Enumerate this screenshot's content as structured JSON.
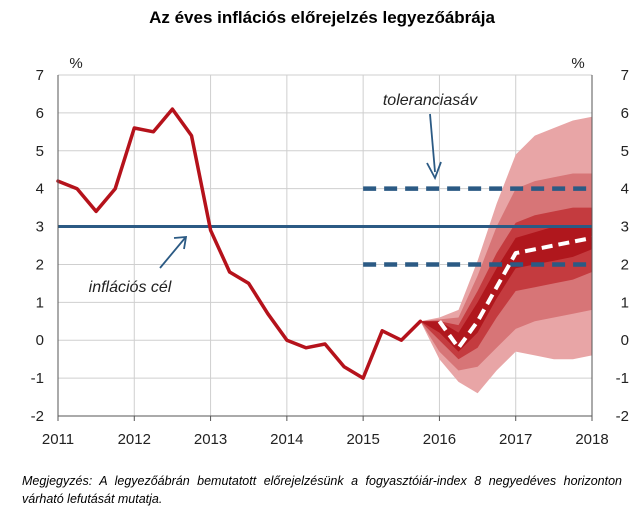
{
  "chart_data": {
    "type": "line",
    "title": "Az éves inflációs előrejelzés legyezőábrája",
    "y_unit_left": "%",
    "y_unit_right": "%",
    "ylim": [
      -2,
      7
    ],
    "y_ticks": [
      "-2",
      "-1",
      "0",
      "1",
      "2",
      "3",
      "4",
      "5",
      "6",
      "7"
    ],
    "xlim": [
      2011,
      2018
    ],
    "x_ticks": [
      "2011",
      "2012",
      "2013",
      "2014",
      "2015",
      "2016",
      "2017",
      "2018"
    ],
    "grid": true,
    "series": [
      {
        "type": "line",
        "color": "#b5121b",
        "points": [
          [
            2011.0,
            4.2
          ],
          [
            2011.25,
            4.0
          ],
          [
            2011.5,
            3.4
          ],
          [
            2011.75,
            4.0
          ],
          [
            2012.0,
            5.6
          ],
          [
            2012.25,
            5.5
          ],
          [
            2012.5,
            6.1
          ],
          [
            2012.75,
            5.4
          ],
          [
            2013.0,
            2.9
          ],
          [
            2013.25,
            1.8
          ],
          [
            2013.5,
            1.5
          ],
          [
            2013.75,
            0.7
          ],
          [
            2014.0,
            0.0
          ],
          [
            2014.25,
            -0.2
          ],
          [
            2014.5,
            -0.1
          ],
          [
            2014.75,
            -0.7
          ],
          [
            2015.0,
            -1.0
          ],
          [
            2015.25,
            0.25
          ],
          [
            2015.5,
            0.0
          ],
          [
            2015.75,
            0.5
          ]
        ]
      }
    ],
    "forecast": {
      "color": "#ffffff",
      "style": "dashed",
      "points": [
        [
          2016.0,
          0.5
        ],
        [
          2016.25,
          -0.2
        ],
        [
          2016.5,
          0.5
        ],
        [
          2016.75,
          1.4
        ],
        [
          2017.0,
          2.3
        ],
        [
          2017.25,
          2.4
        ],
        [
          2017.5,
          2.5
        ],
        [
          2017.75,
          2.6
        ],
        [
          2018.0,
          2.7
        ]
      ]
    },
    "fan": {
      "colors": [
        "#e8a5a6",
        "#d77577",
        "#c43b3f",
        "#b0171d"
      ],
      "x": [
        2015.75,
        2016.0,
        2016.25,
        2016.5,
        2016.75,
        2017.0,
        2017.25,
        2017.5,
        2017.75,
        2018.0
      ],
      "bands": [
        {
          "upper": [
            0.5,
            0.6,
            0.8,
            2.1,
            3.6,
            4.9,
            5.4,
            5.6,
            5.8,
            5.9
          ],
          "lower": [
            0.5,
            -0.5,
            -1.1,
            -1.4,
            -0.8,
            -0.3,
            -0.4,
            -0.5,
            -0.5,
            -0.4
          ]
        },
        {
          "upper": [
            0.5,
            0.55,
            0.6,
            1.7,
            3.0,
            4.0,
            4.2,
            4.3,
            4.4,
            4.4
          ],
          "lower": [
            0.5,
            -0.3,
            -0.8,
            -0.7,
            -0.2,
            0.3,
            0.5,
            0.6,
            0.7,
            0.8
          ]
        },
        {
          "upper": [
            0.5,
            0.5,
            0.4,
            1.3,
            2.3,
            3.1,
            3.3,
            3.4,
            3.5,
            3.5
          ],
          "lower": [
            0.5,
            0.0,
            -0.5,
            -0.2,
            0.6,
            1.3,
            1.4,
            1.5,
            1.6,
            1.8
          ]
        },
        {
          "upper": [
            0.5,
            0.5,
            0.2,
            1.0,
            1.9,
            2.7,
            2.85,
            3.0,
            3.0,
            3.0
          ],
          "lower": [
            0.5,
            0.2,
            -0.3,
            0.2,
            1.1,
            1.9,
            2.0,
            2.1,
            2.2,
            2.4
          ]
        }
      ]
    },
    "target_line": {
      "value": 3,
      "color": "#2b5a84",
      "label": "inflációs cél"
    },
    "tolerance_band": {
      "lower": 2,
      "upper": 4,
      "x": [
        2015.0,
        2018.0
      ],
      "color": "#2b5a84",
      "style": "dashed",
      "label": "toleranciasáv"
    }
  },
  "note": {
    "label": "Megjegyzés:",
    "text": " A legyezőábrán bemutatott előrejelzésünk a fogyasztóiár-index 8 negyedéves horizonton várható lefutását mutatja."
  }
}
